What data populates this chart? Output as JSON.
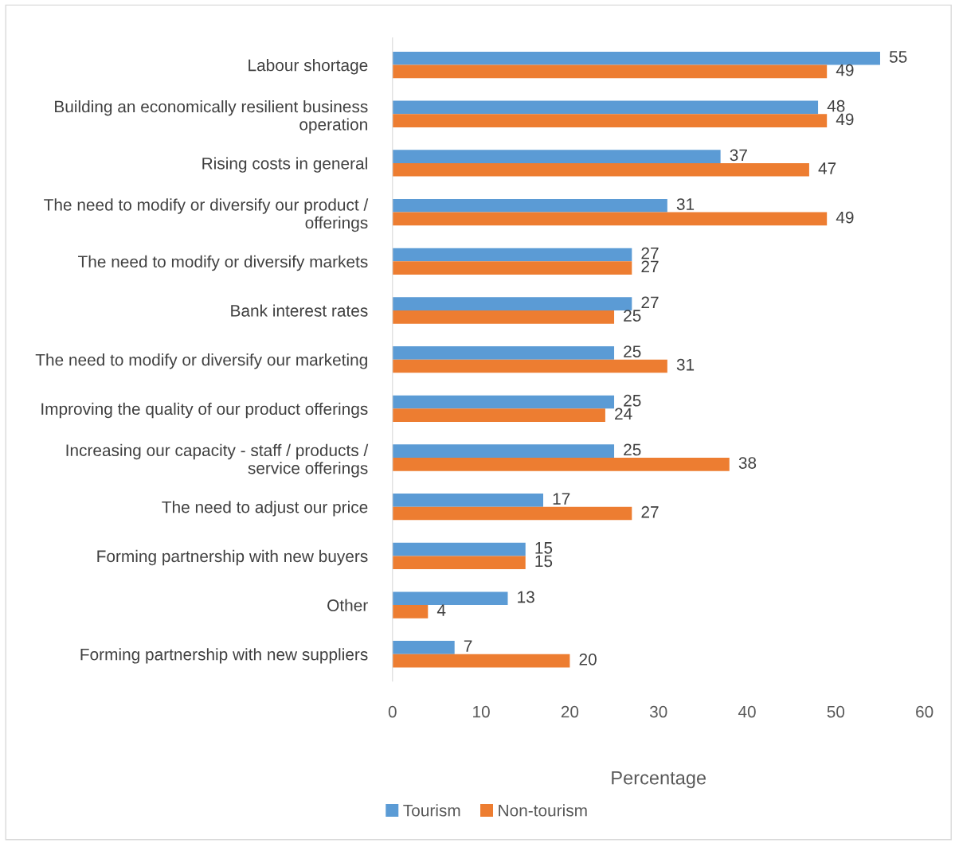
{
  "chart_data": {
    "type": "bar",
    "orientation": "horizontal",
    "xlabel": "Percentage",
    "categories": [
      "Labour shortage",
      "Building an economically resilient business\noperation",
      "Rising costs in general",
      "The need to modify or diversify our product /\nofferings",
      "The need to modify or diversify markets",
      "Bank interest rates",
      "The need to modify or diversify our marketing",
      "Improving the quality of our product offerings",
      "Increasing our capacity - staff / products /\nservice offerings",
      "The need to adjust our price",
      "Forming partnership with new buyers",
      "Other",
      "Forming partnership with new suppliers"
    ],
    "series": [
      {
        "name": "Tourism",
        "color": "#5b9bd5",
        "values": [
          55,
          48,
          37,
          31,
          27,
          27,
          25,
          25,
          25,
          17,
          15,
          13,
          7
        ]
      },
      {
        "name": "Non-tourism",
        "color": "#ed7d31",
        "values": [
          49,
          49,
          47,
          49,
          27,
          25,
          31,
          24,
          38,
          27,
          15,
          4,
          20
        ]
      }
    ],
    "xlim": [
      0,
      60
    ],
    "xticks": [
      0,
      10,
      20,
      30,
      40,
      50,
      60
    ],
    "grid": false,
    "data_labels": true,
    "legend": "bottom"
  }
}
